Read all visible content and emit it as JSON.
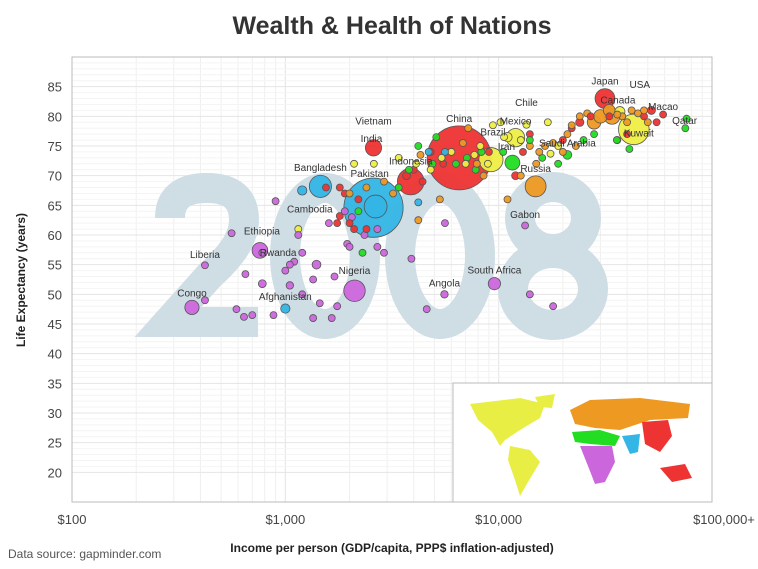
{
  "chart_data": {
    "type": "scatter",
    "title": "Wealth & Health of Nations",
    "xlabel": "Income per person (GDP/capita, PPP$ inflation-adjusted)",
    "ylabel": "Life Expectancy (years)",
    "x_scale": "log",
    "xlim": [
      100,
      100000
    ],
    "ylim": [
      15,
      90
    ],
    "x_ticks": [
      100,
      1000,
      10000,
      100000
    ],
    "x_tick_labels": [
      "$100",
      "$1,000",
      "$10,000",
      "$100,000+"
    ],
    "y_ticks": [
      20,
      25,
      30,
      35,
      40,
      45,
      50,
      55,
      60,
      65,
      70,
      75,
      80,
      85
    ],
    "grid": true,
    "year": "2008",
    "source": "Data source: gapminder.com",
    "size_encoding": "population (millions, approx.)",
    "region_colors": {
      "africa": "#cc66dd",
      "south_asia": "#33b5e5",
      "east_asia": "#ee3333",
      "middle_east": "#22dd22",
      "americas": "#eeee44",
      "europe": "#ee9922"
    },
    "labeled_points": [
      {
        "name": "Congo",
        "income": 365,
        "life": 47.8,
        "pop": 66,
        "region": "africa"
      },
      {
        "name": "Liberia",
        "income": 420,
        "life": 54.9,
        "pop": 4,
        "region": "africa"
      },
      {
        "name": "Ethiopia",
        "income": 760,
        "life": 57.4,
        "pop": 80,
        "region": "africa"
      },
      {
        "name": "Rwanda",
        "income": 1100,
        "life": 55.5,
        "pop": 10,
        "region": "africa"
      },
      {
        "name": "Afghanistan",
        "income": 1000,
        "life": 47.6,
        "pop": 28,
        "region": "south_asia"
      },
      {
        "name": "Bangladesh",
        "income": 1460,
        "life": 68.2,
        "pop": 160,
        "region": "south_asia"
      },
      {
        "name": "Nigeria",
        "income": 2110,
        "life": 50.6,
        "pop": 150,
        "region": "africa"
      },
      {
        "name": "India",
        "income": 2590,
        "life": 64.6,
        "pop": 1140,
        "region": "south_asia"
      },
      {
        "name": "Pakistan",
        "income": 2650,
        "life": 64.8,
        "pop": 170,
        "region": "south_asia"
      },
      {
        "name": "Cambodia",
        "income": 1800,
        "life": 63.2,
        "pop": 14,
        "region": "east_asia"
      },
      {
        "name": "Vietnam",
        "income": 2590,
        "life": 74.7,
        "pop": 86,
        "region": "east_asia"
      },
      {
        "name": "Indonesia",
        "income": 3870,
        "life": 69,
        "pop": 230,
        "region": "east_asia"
      },
      {
        "name": "China",
        "income": 6530,
        "life": 73,
        "pop": 1330,
        "region": "east_asia"
      },
      {
        "name": "Brazil",
        "income": 9200,
        "life": 72.7,
        "pop": 190,
        "region": "americas"
      },
      {
        "name": "Iran",
        "income": 11600,
        "life": 72.2,
        "pop": 72,
        "region": "middle_east"
      },
      {
        "name": "Mexico",
        "income": 12000,
        "life": 76.4,
        "pop": 110,
        "region": "americas"
      },
      {
        "name": "Chile",
        "income": 13500,
        "life": 78.6,
        "pop": 17,
        "region": "americas"
      },
      {
        "name": "Russia",
        "income": 14900,
        "life": 68.2,
        "pop": 142,
        "region": "europe"
      },
      {
        "name": "Gabon",
        "income": 13300,
        "life": 61.6,
        "pop": 2,
        "region": "africa"
      },
      {
        "name": "South Africa",
        "income": 9550,
        "life": 51.8,
        "pop": 49,
        "region": "africa"
      },
      {
        "name": "Angola",
        "income": 5570,
        "life": 50,
        "pop": 18,
        "region": "africa"
      },
      {
        "name": "Saudi Arabia",
        "income": 21000,
        "life": 73.5,
        "pop": 25,
        "region": "middle_east"
      },
      {
        "name": "Japan",
        "income": 31500,
        "life": 83,
        "pop": 128,
        "region": "east_asia"
      },
      {
        "name": "Canada",
        "income": 37000,
        "life": 80.8,
        "pop": 33,
        "region": "americas"
      },
      {
        "name": "USA",
        "income": 43000,
        "life": 77.8,
        "pop": 304,
        "region": "americas"
      },
      {
        "name": "Macao",
        "income": 59000,
        "life": 80.3,
        "pop": 1,
        "region": "east_asia"
      },
      {
        "name": "Qatar",
        "income": 76000,
        "life": 79.6,
        "pop": 1,
        "region": "middle_east"
      },
      {
        "name": "Kuwait",
        "income": 35800,
        "life": 76,
        "pop": 3,
        "region": "middle_east"
      }
    ],
    "unlabeled_points": {
      "africa": [
        [
          560,
          60.3,
          14
        ],
        [
          780,
          57,
          10
        ],
        [
          650,
          53.4,
          12
        ],
        [
          780,
          51.8,
          20
        ],
        [
          1000,
          54,
          15
        ],
        [
          1050,
          51.5,
          18
        ],
        [
          1200,
          50,
          12
        ],
        [
          1400,
          55,
          25
        ],
        [
          1350,
          52.5,
          10
        ],
        [
          1700,
          53,
          12
        ],
        [
          1450,
          48.5,
          8
        ],
        [
          1150,
          60,
          5
        ],
        [
          420,
          49,
          3
        ],
        [
          590,
          47.5,
          6
        ],
        [
          700,
          46.5,
          8
        ],
        [
          880,
          46.5,
          4
        ],
        [
          1350,
          46,
          4
        ],
        [
          1750,
          48,
          4
        ],
        [
          1650,
          46,
          3
        ],
        [
          640,
          46.2,
          3
        ],
        [
          1950,
          58.5,
          8
        ],
        [
          2000,
          58,
          6
        ],
        [
          2700,
          58,
          5
        ],
        [
          2900,
          57,
          4
        ],
        [
          3900,
          56,
          4
        ],
        [
          4600,
          47.5,
          3
        ],
        [
          5600,
          62,
          4
        ],
        [
          1900,
          64,
          6
        ],
        [
          900,
          65.7,
          7
        ],
        [
          2050,
          63,
          4
        ],
        [
          2700,
          61,
          3
        ],
        [
          14000,
          50,
          2
        ],
        [
          18000,
          48,
          3
        ],
        [
          1200,
          57,
          4
        ],
        [
          1050,
          55,
          4
        ],
        [
          2350,
          60,
          5
        ],
        [
          1600,
          62,
          6
        ]
      ],
      "south_asia": [
        [
          1200,
          67.5,
          28
        ],
        [
          4200,
          65.5,
          3
        ],
        [
          5600,
          74,
          4
        ],
        [
          4700,
          74,
          3
        ]
      ],
      "east_asia": [
        [
          1550,
          68,
          10
        ],
        [
          1800,
          68,
          5
        ],
        [
          1900,
          67,
          6
        ],
        [
          2200,
          66,
          4
        ],
        [
          1750,
          62,
          6
        ],
        [
          2000,
          62,
          4
        ],
        [
          2100,
          61,
          4
        ],
        [
          2400,
          61,
          5
        ],
        [
          3700,
          70,
          20
        ],
        [
          3400,
          68,
          15
        ],
        [
          4000,
          71,
          10
        ],
        [
          4400,
          69,
          5
        ],
        [
          4800,
          74,
          6
        ],
        [
          5500,
          72,
          5
        ],
        [
          9000,
          74,
          7
        ],
        [
          12000,
          70,
          20
        ],
        [
          13000,
          74,
          4
        ],
        [
          22000,
          78,
          10
        ],
        [
          24000,
          79,
          22
        ],
        [
          27000,
          80,
          6
        ],
        [
          33000,
          80,
          4
        ],
        [
          36000,
          76,
          5
        ],
        [
          48000,
          80,
          5
        ],
        [
          52000,
          81,
          21
        ],
        [
          40000,
          77,
          3
        ],
        [
          55000,
          79,
          2
        ],
        [
          20000,
          76,
          5
        ],
        [
          14000,
          77,
          4
        ]
      ],
      "middle_east": [
        [
          2300,
          57,
          3
        ],
        [
          2200,
          64,
          8
        ],
        [
          3400,
          68,
          6
        ],
        [
          3800,
          71,
          10
        ],
        [
          4200,
          75,
          4
        ],
        [
          4900,
          72,
          6
        ],
        [
          6300,
          72,
          4
        ],
        [
          7100,
          73,
          6
        ],
        [
          7800,
          71,
          10
        ],
        [
          8300,
          74,
          5
        ],
        [
          10500,
          74,
          7
        ],
        [
          16000,
          73,
          4
        ],
        [
          19000,
          72,
          4
        ],
        [
          28000,
          77,
          4
        ],
        [
          25000,
          76,
          4
        ],
        [
          41000,
          74.5,
          4
        ],
        [
          75000,
          78,
          3
        ],
        [
          5100,
          76.5,
          5
        ],
        [
          14000,
          76,
          4
        ]
      ],
      "americas": [
        [
          1150,
          61,
          10
        ],
        [
          2600,
          72,
          4
        ],
        [
          3400,
          73,
          2
        ],
        [
          4100,
          72,
          7
        ],
        [
          4800,
          71,
          6
        ],
        [
          5400,
          73,
          4
        ],
        [
          6000,
          74,
          5
        ],
        [
          7000,
          72,
          4
        ],
        [
          7700,
          73.5,
          8
        ],
        [
          8200,
          75,
          4
        ],
        [
          8900,
          72,
          5
        ],
        [
          10600,
          76.5,
          4
        ],
        [
          9400,
          78.5,
          3
        ],
        [
          10200,
          79,
          3
        ],
        [
          11000,
          76.5,
          28
        ],
        [
          12700,
          76,
          8
        ],
        [
          17000,
          79,
          4
        ],
        [
          17500,
          73.7,
          3
        ],
        [
          19000,
          75,
          4
        ],
        [
          2100,
          72,
          2
        ]
      ],
      "europe": [
        [
          2000,
          67,
          4
        ],
        [
          2400,
          68,
          7
        ],
        [
          2900,
          69,
          5
        ],
        [
          3200,
          67,
          8
        ],
        [
          4300,
          73.5,
          4
        ],
        [
          4200,
          62.5,
          4
        ],
        [
          5300,
          66,
          5
        ],
        [
          7200,
          78,
          5
        ],
        [
          6800,
          75.5,
          4
        ],
        [
          7900,
          72,
          4
        ],
        [
          8500,
          70,
          6
        ],
        [
          11000,
          66,
          4
        ],
        [
          12700,
          70,
          4
        ],
        [
          15500,
          74,
          4
        ],
        [
          16500,
          75,
          10
        ],
        [
          18000,
          75.5,
          8
        ],
        [
          20000,
          74,
          5
        ],
        [
          21000,
          77,
          4
        ],
        [
          22000,
          78.5,
          5
        ],
        [
          24000,
          80,
          8
        ],
        [
          26000,
          80.5,
          11
        ],
        [
          28000,
          79,
          60
        ],
        [
          30000,
          80,
          59
        ],
        [
          33000,
          81,
          45
        ],
        [
          34000,
          80,
          82
        ],
        [
          36000,
          80.3,
          9
        ],
        [
          38000,
          80,
          16
        ],
        [
          40000,
          79,
          5
        ],
        [
          42000,
          81,
          4
        ],
        [
          45000,
          80.5,
          7
        ],
        [
          50000,
          79,
          5
        ],
        [
          48000,
          81,
          4
        ],
        [
          15000,
          72,
          2
        ],
        [
          23000,
          75,
          4
        ],
        [
          14000,
          75,
          5
        ]
      ]
    }
  }
}
